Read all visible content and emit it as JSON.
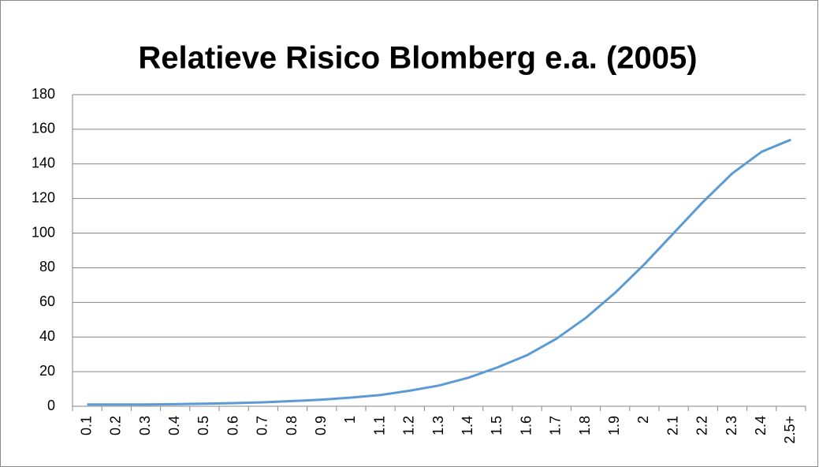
{
  "chart_data": {
    "type": "line",
    "title": "Relatieve Risico Blomberg e.a. (2005)",
    "categories": [
      "0.1",
      "0.2",
      "0.3",
      "0.4",
      "0.5",
      "0.6",
      "0.7",
      "0.8",
      "0.9",
      "1",
      "1.1",
      "1.2",
      "1.3",
      "1.4",
      "1.5",
      "1.6",
      "1.7",
      "1.8",
      "1.9",
      "2",
      "2.1",
      "2.2",
      "2.3",
      "2.4",
      "2.5+"
    ],
    "series": [
      {
        "color": "#5b9bd5",
        "values": [
          1,
          1,
          1,
          1.2,
          1.5,
          1.8,
          2.3,
          3,
          3.8,
          5,
          6.5,
          9,
          12,
          16.5,
          22.5,
          29.5,
          39,
          51,
          65.5,
          82,
          100,
          118,
          134.5,
          147,
          154
        ]
      }
    ],
    "ylim": [
      0,
      180
    ],
    "yticks": [
      0,
      20,
      40,
      60,
      80,
      100,
      120,
      140,
      160,
      180
    ],
    "grid": true
  }
}
